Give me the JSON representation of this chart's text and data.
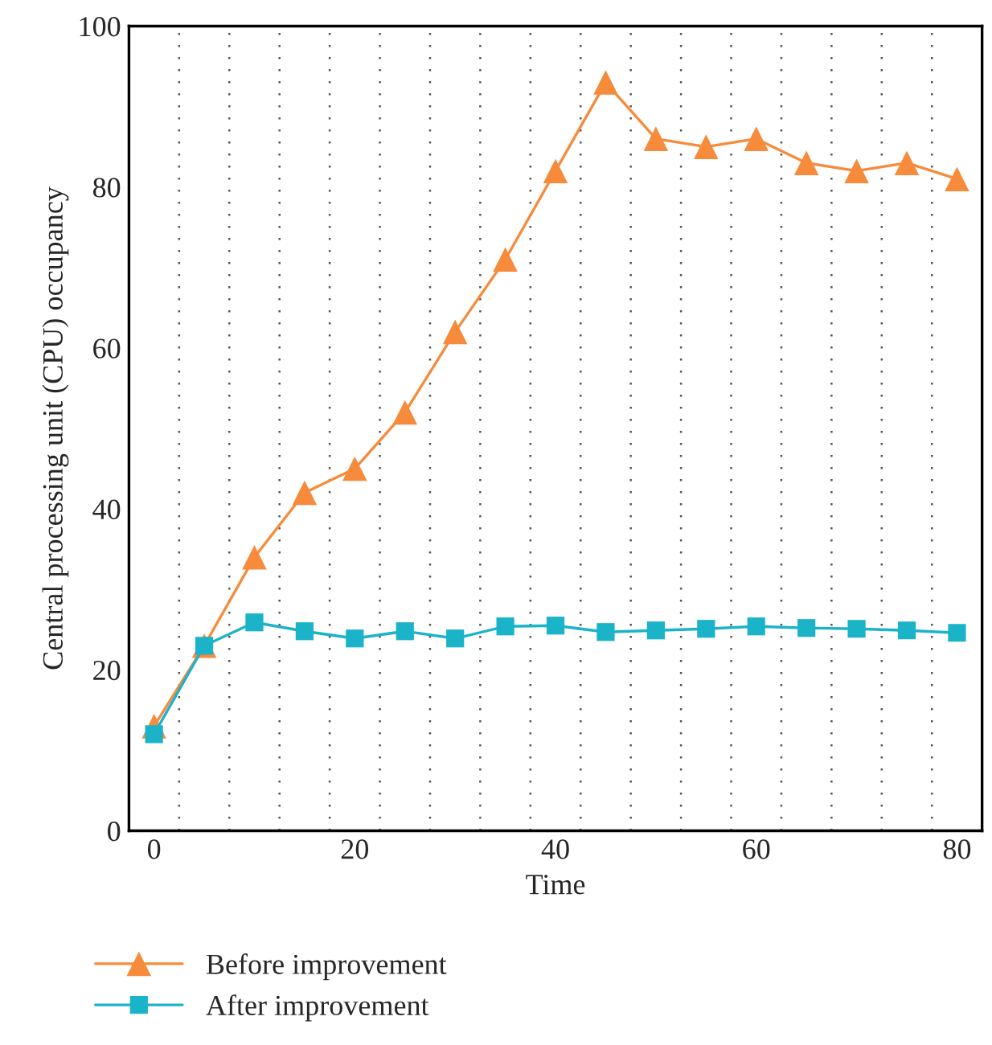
{
  "chart_data": {
    "type": "line",
    "xlabel": "Time",
    "ylabel": "Central processing unit (CPU) occupancy",
    "x": [
      0,
      5,
      10,
      15,
      20,
      25,
      30,
      35,
      40,
      45,
      50,
      55,
      60,
      65,
      70,
      75,
      80
    ],
    "series": [
      {
        "name": "Before improvement",
        "color": "#f68b3c",
        "marker": "triangle",
        "values": [
          13,
          23,
          34,
          42,
          45,
          52,
          62,
          71,
          82,
          93,
          86,
          85,
          86,
          83,
          82,
          83,
          81
        ]
      },
      {
        "name": "After improvement",
        "color": "#1ab3c8",
        "marker": "square",
        "values": [
          12,
          23,
          25.9,
          24.8,
          23.9,
          24.8,
          23.9,
          25.4,
          25.5,
          24.7,
          24.9,
          25.1,
          25.4,
          25.2,
          25.1,
          24.9,
          24.6
        ]
      }
    ],
    "xlim": [
      -2.5,
      82.5
    ],
    "ylim": [
      0,
      100
    ],
    "xticks": [
      0,
      {
        "value": 2.5,
        "label": null
      },
      {
        "value": 7.5,
        "label": null
      },
      {
        "value": 12.5,
        "label": null
      },
      {
        "value": 17.5,
        "label": null
      },
      20,
      {
        "value": 22.5,
        "label": null
      },
      {
        "value": 27.5,
        "label": null
      },
      {
        "value": 32.5,
        "label": null
      },
      {
        "value": 37.5,
        "label": null
      },
      40,
      {
        "value": 42.5,
        "label": null
      },
      {
        "value": 47.5,
        "label": null
      },
      {
        "value": 52.5,
        "label": null
      },
      {
        "value": 57.5,
        "label": null
      },
      60,
      {
        "value": 62.5,
        "label": null
      },
      {
        "value": 67.5,
        "label": null
      },
      {
        "value": 72.5,
        "label": null
      },
      {
        "value": 77.5,
        "label": null
      },
      80
    ],
    "yticks": [
      0,
      20,
      40,
      60,
      80,
      100
    ],
    "grid": "x",
    "legend": "bottom",
    "line_style": "solid"
  }
}
